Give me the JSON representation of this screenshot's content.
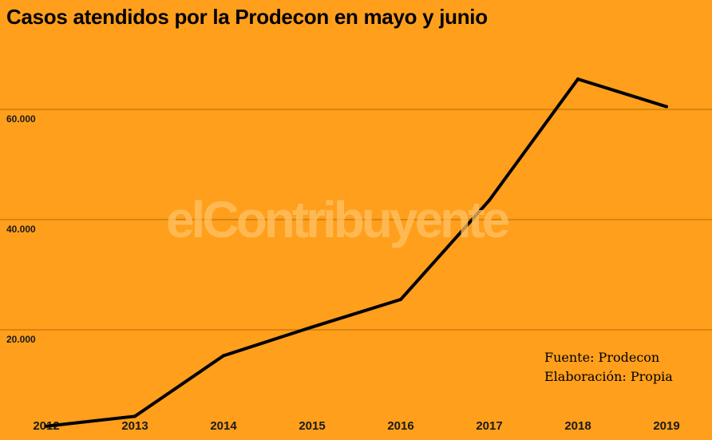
{
  "title": "Casos atendidos por la Prodecon en mayo y junio",
  "watermark": "elContribuyente",
  "source_line1": "Fuente: Prodecon",
  "source_line2": "Elaboración: Propia",
  "colors": {
    "background": "#FF9F1C",
    "line": "#000000",
    "gridline": "#B36B00"
  },
  "chart_data": {
    "type": "line",
    "title": "Casos atendidos por la Prodecon en mayo y junio",
    "xlabel": "",
    "ylabel": "",
    "categories": [
      "2012",
      "2013",
      "2014",
      "2015",
      "2016",
      "2017",
      "2018",
      "2019"
    ],
    "values": [
      2500,
      4300,
      15300,
      20500,
      25500,
      43500,
      65500,
      60500
    ],
    "ylim": [
      0,
      80000
    ],
    "yticks": [
      20000,
      40000,
      60000
    ],
    "ytick_labels": [
      "20.000",
      "40.000",
      "60.000"
    ],
    "grid": true,
    "legend": "none"
  }
}
